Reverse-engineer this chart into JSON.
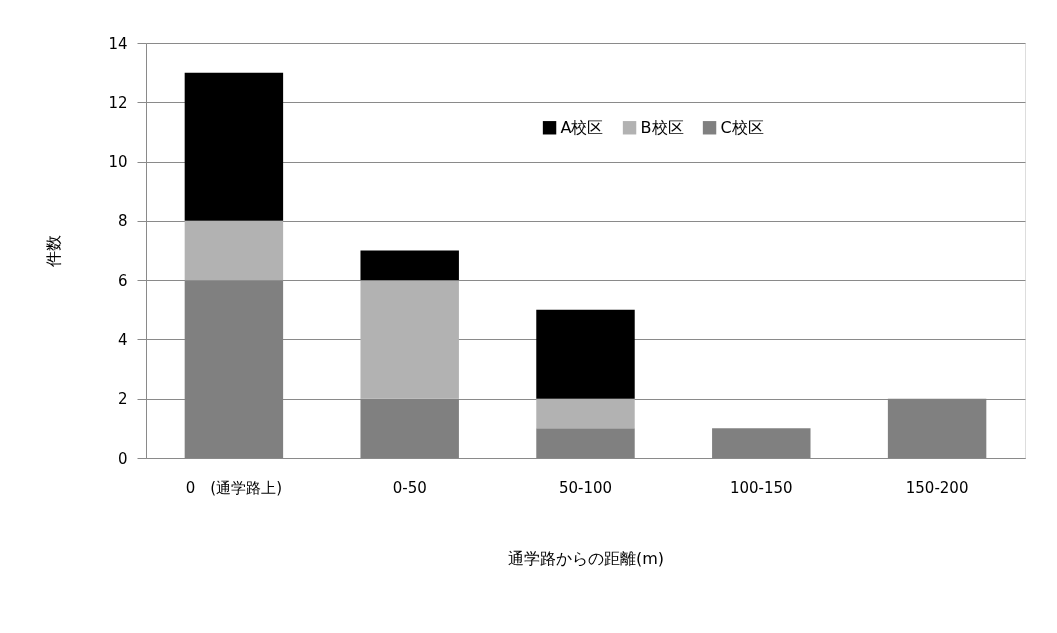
{
  "chart_data": {
    "type": "bar",
    "stacked": true,
    "categories": [
      "0　(通学路上)",
      "0-50",
      "50-100",
      "100-150",
      "150-200"
    ],
    "series": [
      {
        "name": "C校区",
        "color": "#808080",
        "values": [
          6,
          2,
          1,
          1,
          2
        ]
      },
      {
        "name": "B校区",
        "color": "#b2b2b2",
        "values": [
          2,
          4,
          1,
          0,
          0
        ]
      },
      {
        "name": "A校区",
        "color": "#000000",
        "values": [
          5,
          1,
          3,
          0,
          0
        ]
      }
    ],
    "xlabel": "通学路からの距離(m)",
    "ylabel": "件数",
    "ylim": [
      0,
      14
    ],
    "yticks": [
      0,
      2,
      4,
      6,
      8,
      10,
      12,
      14
    ],
    "grid": "y",
    "legend": "top right"
  }
}
